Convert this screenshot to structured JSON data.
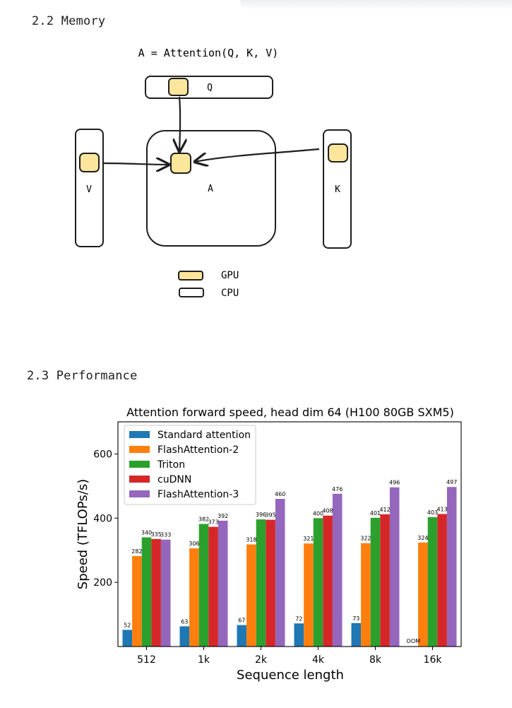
{
  "memory": {
    "title": "2.2 Memory",
    "equation": "A = Attention(Q, K, V)",
    "labels": {
      "q": "Q",
      "a": "A",
      "v": "V",
      "k": "K"
    },
    "legend": {
      "gpu": "GPU",
      "cpu": "CPU"
    },
    "colors": {
      "gpu_fill": "#fbe69b",
      "stroke": "#1e1e1e"
    }
  },
  "performance": {
    "title": "2.3 Performance"
  },
  "chart_data": {
    "type": "bar",
    "title": "Attention forward speed, head dim 64 (H100 80GB SXM5)",
    "xlabel": "Sequence length",
    "ylabel": "Speed (TFLOPs/s)",
    "categories": [
      "512",
      "1k",
      "2k",
      "4k",
      "8k",
      "16k"
    ],
    "yticks": [
      200,
      400,
      600
    ],
    "ylim": [
      0,
      700
    ],
    "legend_position": "top-left",
    "series": [
      {
        "name": "Standard attention",
        "color": "#1f77b4",
        "values": [
          52,
          63,
          67,
          72,
          73,
          null
        ],
        "labels": [
          "52",
          "63",
          "67",
          "72",
          "73",
          "OOM"
        ]
      },
      {
        "name": "FlashAttention-2",
        "color": "#ff7f0e",
        "values": [
          282,
          306,
          318,
          321,
          322,
          324
        ],
        "labels": [
          "282",
          "306",
          "318",
          "321",
          "322",
          "324"
        ]
      },
      {
        "name": "Triton",
        "color": "#2ca02c",
        "values": [
          340,
          382,
          396,
          400,
          401,
          403
        ],
        "labels": [
          "340",
          "382",
          "396",
          "400",
          "401",
          "403"
        ]
      },
      {
        "name": "cuDNN",
        "color": "#d62728",
        "values": [
          335,
          373,
          395,
          408,
          412,
          413
        ],
        "labels": [
          "335",
          "373",
          "395",
          "408",
          "412",
          "413"
        ]
      },
      {
        "name": "FlashAttention-3",
        "color": "#9467bd",
        "values": [
          333,
          392,
          460,
          476,
          496,
          497
        ],
        "labels": [
          "333",
          "392",
          "460",
          "476",
          "496",
          "497"
        ]
      }
    ]
  }
}
